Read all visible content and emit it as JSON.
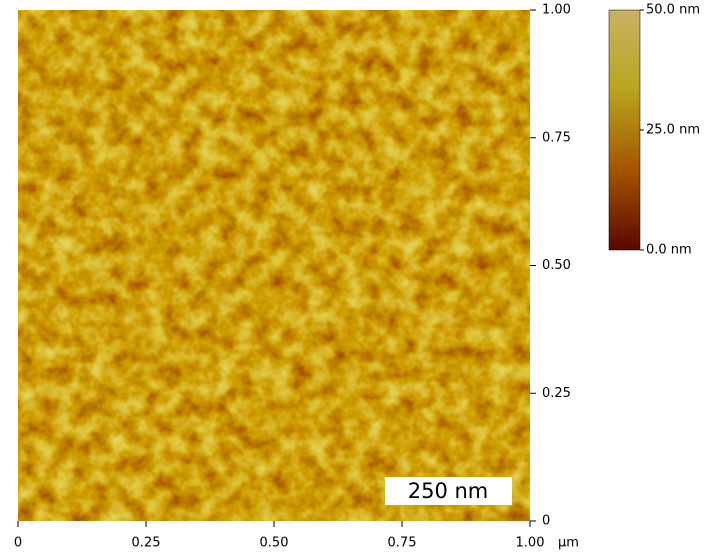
{
  "chart_data": {
    "type": "image",
    "xlim": [
      0,
      1
    ],
    "ylim": [
      0,
      1
    ],
    "xticks": [
      0,
      {
        "value": 0.25,
        "label": "0.25"
      },
      {
        "value": 0.5,
        "label": "0.50"
      },
      {
        "value": 0.75,
        "label": "0.75"
      },
      {
        "value": 1,
        "label": "1.00"
      }
    ],
    "yticks": [
      0,
      {
        "value": 0.25,
        "label": "0.25"
      },
      {
        "value": 0.5,
        "label": "0.50"
      },
      {
        "value": 0.75,
        "label": "0.75"
      },
      {
        "value": 1,
        "label": "1.00"
      }
    ],
    "xlabel": "µm",
    "colorbar": {
      "lim": [
        0,
        50
      ],
      "ticks": [
        {
          "value": 0,
          "label": "0.0 nm"
        },
        {
          "value": 25,
          "label": "25.0 nm"
        },
        {
          "value": 50,
          "label": "50.0 nm"
        }
      ],
      "colors": [
        "#5a0800",
        "#a65400",
        "#b8a51e",
        "#c8b264"
      ]
    },
    "scale_bar": "250 nm"
  }
}
